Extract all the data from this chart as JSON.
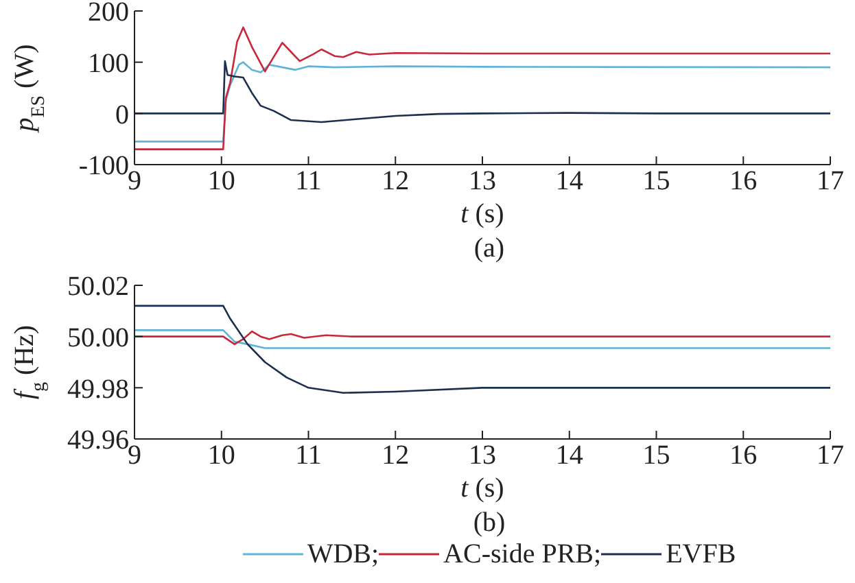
{
  "chart_data": [
    {
      "type": "line",
      "ylabel": "p$_{ES}$ (W)",
      "xlabel": "t (s)",
      "annotations": [
        "(a)"
      ],
      "xlim": [
        9,
        17
      ],
      "xticks": [
        9,
        10,
        11,
        12,
        13,
        14,
        15,
        16,
        17
      ],
      "ylim": [
        -100,
        200
      ],
      "yticks": [
        -100,
        0,
        100,
        200
      ],
      "grid": false,
      "legend": false,
      "series": [
        {
          "color": "#5fb3d6",
          "x": [
            9,
            10.02,
            10.05,
            10.1,
            10.2,
            10.25,
            10.35,
            10.45,
            10.55,
            10.7,
            10.85,
            11,
            11.3,
            12,
            13,
            17
          ],
          "values": [
            -55,
            -55,
            25,
            55,
            95,
            100,
            85,
            80,
            95,
            90,
            85,
            92,
            90,
            92,
            91,
            90
          ]
        },
        {
          "color": "#c8283c",
          "x": [
            9,
            10.02,
            10.05,
            10.1,
            10.18,
            10.25,
            10.35,
            10.5,
            10.6,
            10.7,
            10.8,
            10.9,
            11.05,
            11.15,
            11.3,
            11.4,
            11.55,
            11.7,
            12,
            13,
            17
          ],
          "values": [
            -70,
            -70,
            30,
            60,
            140,
            168,
            130,
            82,
            110,
            138,
            120,
            102,
            115,
            125,
            112,
            110,
            120,
            115,
            118,
            117,
            117
          ]
        },
        {
          "color": "#1c2f4f",
          "x": [
            9,
            10.02,
            10.04,
            10.07,
            10.15,
            10.25,
            10.35,
            10.45,
            10.6,
            10.8,
            11.15,
            11.5,
            12,
            12.5,
            13,
            14,
            15,
            16,
            17
          ],
          "values": [
            0,
            0,
            102,
            75,
            72,
            70,
            40,
            15,
            5,
            -13,
            -17,
            -12,
            -5,
            -1,
            0,
            1,
            0,
            0,
            0
          ]
        }
      ]
    },
    {
      "type": "line",
      "ylabel": "f$_{g}$ (Hz)",
      "xlabel": "t (s)",
      "annotations": [
        "(b)"
      ],
      "xlim": [
        9,
        17
      ],
      "xticks": [
        9,
        10,
        11,
        12,
        13,
        14,
        15,
        16,
        17
      ],
      "ylim": [
        49.96,
        50.02
      ],
      "yticks": [
        {
          "value": 49.96,
          "label": "49.96"
        },
        {
          "value": 49.98,
          "label": "49.98"
        },
        {
          "value": 50,
          "label": "50.00"
        },
        {
          "value": 50.02,
          "label": "50.02"
        }
      ],
      "grid": false,
      "legend": "bottom",
      "series": [
        {
          "name": "WDB;",
          "color": "#5fb3d6",
          "x": [
            9,
            10.02,
            10.15,
            10.3,
            10.5,
            17
          ],
          "values": [
            50.0025,
            50.0025,
            49.998,
            49.997,
            49.9955,
            49.9955
          ]
        },
        {
          "name": "AC-side PRB;",
          "color": "#c8283c",
          "x": [
            9,
            10.02,
            10.15,
            10.25,
            10.35,
            10.45,
            10.55,
            10.7,
            10.8,
            10.95,
            11.2,
            11.5,
            17
          ],
          "values": [
            50,
            50,
            49.997,
            49.999,
            50.002,
            50,
            49.999,
            50.0005,
            50.001,
            49.9995,
            50.0005,
            50,
            50
          ]
        },
        {
          "name": "EVFB",
          "color": "#1c2f4f",
          "x": [
            9,
            10.02,
            10.1,
            10.3,
            10.5,
            10.75,
            11,
            11.4,
            12,
            13,
            17
          ],
          "values": [
            50.012,
            50.012,
            50.007,
            49.997,
            49.99,
            49.984,
            49.98,
            49.978,
            49.9785,
            49.98,
            49.98
          ]
        }
      ]
    }
  ]
}
